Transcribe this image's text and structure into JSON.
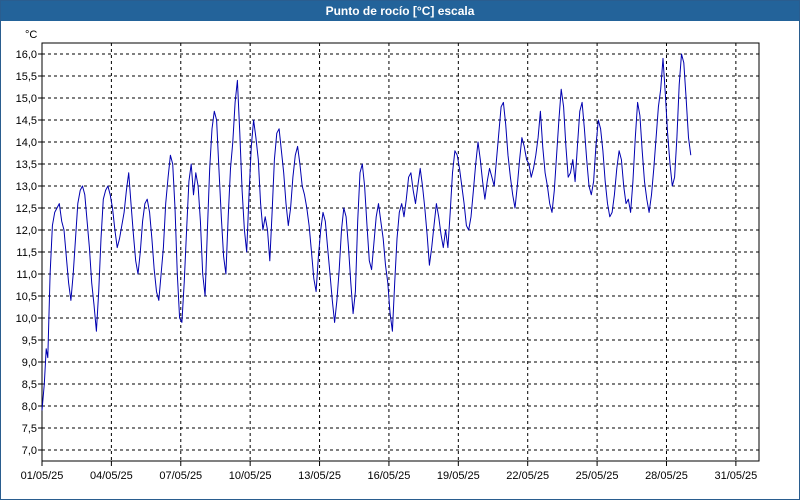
{
  "window": {
    "title": "Punto de rocío [°C] escala"
  },
  "chart_data": {
    "type": "line",
    "title": "Punto de rocío [°C] escala",
    "y_unit": "°C",
    "ylim": [
      6.75,
      16.25
    ],
    "y_ticks": [
      "7,0",
      "7,5",
      "8,0",
      "8,5",
      "9,0",
      "9,5",
      "10,0",
      "10,5",
      "11,0",
      "11,5",
      "12,0",
      "12,5",
      "13,0",
      "13,5",
      "14,0",
      "14,5",
      "15,0",
      "15,5",
      "16,0"
    ],
    "x_start": "2025-05-01",
    "x_end": "2025-06-01",
    "x_tick_labels": [
      "01/05/25",
      "04/05/25",
      "07/05/25",
      "10/05/25",
      "13/05/25",
      "16/05/25",
      "19/05/25",
      "22/05/25",
      "25/05/25",
      "28/05/25",
      "31/05/25"
    ],
    "grid": true,
    "colors": {
      "line": "#0000b0",
      "grid": "#000000",
      "title_bar": "#23639a"
    },
    "series": [
      {
        "values": [
          [
            0.0,
            7.9
          ],
          [
            0.1,
            8.5
          ],
          [
            0.18,
            9.3
          ],
          [
            0.25,
            9.1
          ],
          [
            0.35,
            11.0
          ],
          [
            0.45,
            12.1
          ],
          [
            0.55,
            12.4
          ],
          [
            0.65,
            12.5
          ],
          [
            0.75,
            12.6
          ],
          [
            0.85,
            12.2
          ],
          [
            0.95,
            12.0
          ],
          [
            1.05,
            11.4
          ],
          [
            1.15,
            10.8
          ],
          [
            1.25,
            10.4
          ],
          [
            1.35,
            11.0
          ],
          [
            1.45,
            11.8
          ],
          [
            1.55,
            12.6
          ],
          [
            1.65,
            12.9
          ],
          [
            1.75,
            13.0
          ],
          [
            1.85,
            12.8
          ],
          [
            1.95,
            12.2
          ],
          [
            2.05,
            11.6
          ],
          [
            2.15,
            10.8
          ],
          [
            2.25,
            10.3
          ],
          [
            2.35,
            9.7
          ],
          [
            2.45,
            10.6
          ],
          [
            2.55,
            11.8
          ],
          [
            2.65,
            12.7
          ],
          [
            2.75,
            12.9
          ],
          [
            2.85,
            13.0
          ],
          [
            2.95,
            12.8
          ],
          [
            3.05,
            12.5
          ],
          [
            3.15,
            12.0
          ],
          [
            3.25,
            11.6
          ],
          [
            3.35,
            11.8
          ],
          [
            3.45,
            12.1
          ],
          [
            3.55,
            12.4
          ],
          [
            3.65,
            12.9
          ],
          [
            3.75,
            13.3
          ],
          [
            3.85,
            12.6
          ],
          [
            3.95,
            11.9
          ],
          [
            4.05,
            11.3
          ],
          [
            4.15,
            11.0
          ],
          [
            4.25,
            11.5
          ],
          [
            4.35,
            12.2
          ],
          [
            4.45,
            12.6
          ],
          [
            4.55,
            12.7
          ],
          [
            4.65,
            12.4
          ],
          [
            4.75,
            11.8
          ],
          [
            4.85,
            11.1
          ],
          [
            4.95,
            10.6
          ],
          [
            5.05,
            10.4
          ],
          [
            5.15,
            11.0
          ],
          [
            5.25,
            11.6
          ],
          [
            5.35,
            12.6
          ],
          [
            5.45,
            13.2
          ],
          [
            5.55,
            13.7
          ],
          [
            5.65,
            13.5
          ],
          [
            5.75,
            12.5
          ],
          [
            5.85,
            11.0
          ],
          [
            5.95,
            10.0
          ],
          [
            6.05,
            9.9
          ],
          [
            6.15,
            10.8
          ],
          [
            6.25,
            12.0
          ],
          [
            6.35,
            13.1
          ],
          [
            6.45,
            13.5
          ],
          [
            6.55,
            12.8
          ],
          [
            6.65,
            13.3
          ],
          [
            6.75,
            13.0
          ],
          [
            6.85,
            12.2
          ],
          [
            6.95,
            11.0
          ],
          [
            7.05,
            10.5
          ],
          [
            7.15,
            12.0
          ],
          [
            7.25,
            13.4
          ],
          [
            7.35,
            14.3
          ],
          [
            7.45,
            14.7
          ],
          [
            7.55,
            14.5
          ],
          [
            7.65,
            13.4
          ],
          [
            7.75,
            12.3
          ],
          [
            7.85,
            11.4
          ],
          [
            7.95,
            11.0
          ],
          [
            8.05,
            12.3
          ],
          [
            8.15,
            13.4
          ],
          [
            8.25,
            14.0
          ],
          [
            8.35,
            14.9
          ],
          [
            8.45,
            15.4
          ],
          [
            8.55,
            14.2
          ],
          [
            8.65,
            12.9
          ],
          [
            8.75,
            12.0
          ],
          [
            8.85,
            11.5
          ],
          [
            8.95,
            12.8
          ],
          [
            9.05,
            13.9
          ],
          [
            9.15,
            14.5
          ],
          [
            9.25,
            14.1
          ],
          [
            9.35,
            13.6
          ],
          [
            9.45,
            12.6
          ],
          [
            9.55,
            12.0
          ],
          [
            9.65,
            12.3
          ],
          [
            9.75,
            12.0
          ],
          [
            9.85,
            11.3
          ],
          [
            9.95,
            12.4
          ],
          [
            10.05,
            13.6
          ],
          [
            10.15,
            14.2
          ],
          [
            10.25,
            14.3
          ],
          [
            10.35,
            13.8
          ],
          [
            10.45,
            13.3
          ],
          [
            10.55,
            12.6
          ],
          [
            10.65,
            12.1
          ],
          [
            10.75,
            12.5
          ],
          [
            10.85,
            13.2
          ],
          [
            10.95,
            13.7
          ],
          [
            11.05,
            13.9
          ],
          [
            11.15,
            13.5
          ],
          [
            11.25,
            13.0
          ],
          [
            11.35,
            12.8
          ],
          [
            11.45,
            12.5
          ],
          [
            11.55,
            12.1
          ],
          [
            11.65,
            11.5
          ],
          [
            11.75,
            10.9
          ],
          [
            11.85,
            10.6
          ],
          [
            11.95,
            11.4
          ],
          [
            12.05,
            12.0
          ],
          [
            12.15,
            12.4
          ],
          [
            12.25,
            12.2
          ],
          [
            12.35,
            11.6
          ],
          [
            12.45,
            11.0
          ],
          [
            12.55,
            10.4
          ],
          [
            12.65,
            9.9
          ],
          [
            12.75,
            10.4
          ],
          [
            12.85,
            11.1
          ],
          [
            12.95,
            12.0
          ],
          [
            13.05,
            12.5
          ],
          [
            13.15,
            12.3
          ],
          [
            13.25,
            11.6
          ],
          [
            13.35,
            10.8
          ],
          [
            13.45,
            10.1
          ],
          [
            13.55,
            10.6
          ],
          [
            13.65,
            12.2
          ],
          [
            13.75,
            13.3
          ],
          [
            13.85,
            13.5
          ],
          [
            13.95,
            13.0
          ],
          [
            14.05,
            12.1
          ],
          [
            14.15,
            11.3
          ],
          [
            14.25,
            11.1
          ],
          [
            14.35,
            11.7
          ],
          [
            14.45,
            12.3
          ],
          [
            14.55,
            12.6
          ],
          [
            14.65,
            12.2
          ],
          [
            14.75,
            11.8
          ],
          [
            14.85,
            11.2
          ],
          [
            14.95,
            10.8
          ],
          [
            15.05,
            10.1
          ],
          [
            15.15,
            9.7
          ],
          [
            15.25,
            10.8
          ],
          [
            15.35,
            11.8
          ],
          [
            15.45,
            12.4
          ],
          [
            15.55,
            12.6
          ],
          [
            15.65,
            12.3
          ],
          [
            15.75,
            12.7
          ],
          [
            15.85,
            13.2
          ],
          [
            15.95,
            13.3
          ],
          [
            16.05,
            12.9
          ],
          [
            16.15,
            12.6
          ],
          [
            16.25,
            13.0
          ],
          [
            16.35,
            13.4
          ],
          [
            16.45,
            13.0
          ],
          [
            16.55,
            12.5
          ],
          [
            16.65,
            11.9
          ],
          [
            16.75,
            11.2
          ],
          [
            16.85,
            11.6
          ],
          [
            16.95,
            12.1
          ],
          [
            17.05,
            12.6
          ],
          [
            17.15,
            12.3
          ],
          [
            17.25,
            11.9
          ],
          [
            17.35,
            11.6
          ],
          [
            17.45,
            12.0
          ],
          [
            17.55,
            11.6
          ],
          [
            17.65,
            12.4
          ],
          [
            17.75,
            13.3
          ],
          [
            17.85,
            13.8
          ],
          [
            17.95,
            13.7
          ],
          [
            18.05,
            13.4
          ],
          [
            18.15,
            13.0
          ],
          [
            18.25,
            12.6
          ],
          [
            18.35,
            12.1
          ],
          [
            18.45,
            12.0
          ],
          [
            18.55,
            12.3
          ],
          [
            18.65,
            12.9
          ],
          [
            18.75,
            13.5
          ],
          [
            18.85,
            14.0
          ],
          [
            18.95,
            13.6
          ],
          [
            19.05,
            13.1
          ],
          [
            19.15,
            12.7
          ],
          [
            19.25,
            13.1
          ],
          [
            19.35,
            13.4
          ],
          [
            19.45,
            13.2
          ],
          [
            19.55,
            13.0
          ],
          [
            19.65,
            13.6
          ],
          [
            19.75,
            14.2
          ],
          [
            19.85,
            14.8
          ],
          [
            19.95,
            14.9
          ],
          [
            20.05,
            14.4
          ],
          [
            20.15,
            13.7
          ],
          [
            20.25,
            13.2
          ],
          [
            20.35,
            12.8
          ],
          [
            20.45,
            12.5
          ],
          [
            20.55,
            13.0
          ],
          [
            20.65,
            13.6
          ],
          [
            20.75,
            14.1
          ],
          [
            20.85,
            13.9
          ],
          [
            20.95,
            13.6
          ],
          [
            21.05,
            13.5
          ],
          [
            21.15,
            13.2
          ],
          [
            21.25,
            13.4
          ],
          [
            21.35,
            13.7
          ],
          [
            21.45,
            14.1
          ],
          [
            21.55,
            14.7
          ],
          [
            21.65,
            13.9
          ],
          [
            21.75,
            13.3
          ],
          [
            21.85,
            13.0
          ],
          [
            21.95,
            12.6
          ],
          [
            22.05,
            12.4
          ],
          [
            22.15,
            12.9
          ],
          [
            22.25,
            13.7
          ],
          [
            22.35,
            14.5
          ],
          [
            22.45,
            15.2
          ],
          [
            22.55,
            14.8
          ],
          [
            22.65,
            13.9
          ],
          [
            22.75,
            13.2
          ],
          [
            22.85,
            13.3
          ],
          [
            22.95,
            13.6
          ],
          [
            23.05,
            13.1
          ],
          [
            23.15,
            13.9
          ],
          [
            23.25,
            14.7
          ],
          [
            23.35,
            14.9
          ],
          [
            23.45,
            14.3
          ],
          [
            23.55,
            13.6
          ],
          [
            23.65,
            13.0
          ],
          [
            23.75,
            12.8
          ],
          [
            23.85,
            13.1
          ],
          [
            23.95,
            13.9
          ],
          [
            24.05,
            14.5
          ],
          [
            24.15,
            14.3
          ],
          [
            24.25,
            13.8
          ],
          [
            24.35,
            13.1
          ],
          [
            24.45,
            12.6
          ],
          [
            24.55,
            12.3
          ],
          [
            24.65,
            12.4
          ],
          [
            24.75,
            12.8
          ],
          [
            24.85,
            13.4
          ],
          [
            24.95,
            13.8
          ],
          [
            25.05,
            13.6
          ],
          [
            25.15,
            13.0
          ],
          [
            25.25,
            12.6
          ],
          [
            25.35,
            12.7
          ],
          [
            25.45,
            12.4
          ],
          [
            25.55,
            13.1
          ],
          [
            25.65,
            14.1
          ],
          [
            25.75,
            14.9
          ],
          [
            25.85,
            14.6
          ],
          [
            25.95,
            13.8
          ],
          [
            26.05,
            13.1
          ],
          [
            26.15,
            12.7
          ],
          [
            26.25,
            12.4
          ],
          [
            26.35,
            12.8
          ],
          [
            26.45,
            13.4
          ],
          [
            26.55,
            14.1
          ],
          [
            26.65,
            14.8
          ],
          [
            26.75,
            15.2
          ],
          [
            26.85,
            15.9
          ],
          [
            26.95,
            15.1
          ],
          [
            27.05,
            14.2
          ],
          [
            27.15,
            13.5
          ],
          [
            27.25,
            13.0
          ],
          [
            27.35,
            13.2
          ],
          [
            27.45,
            14.1
          ],
          [
            27.55,
            15.3
          ],
          [
            27.65,
            16.0
          ],
          [
            27.75,
            15.8
          ],
          [
            27.85,
            15.0
          ],
          [
            27.95,
            14.1
          ],
          [
            28.05,
            13.7
          ]
        ]
      }
    ]
  }
}
